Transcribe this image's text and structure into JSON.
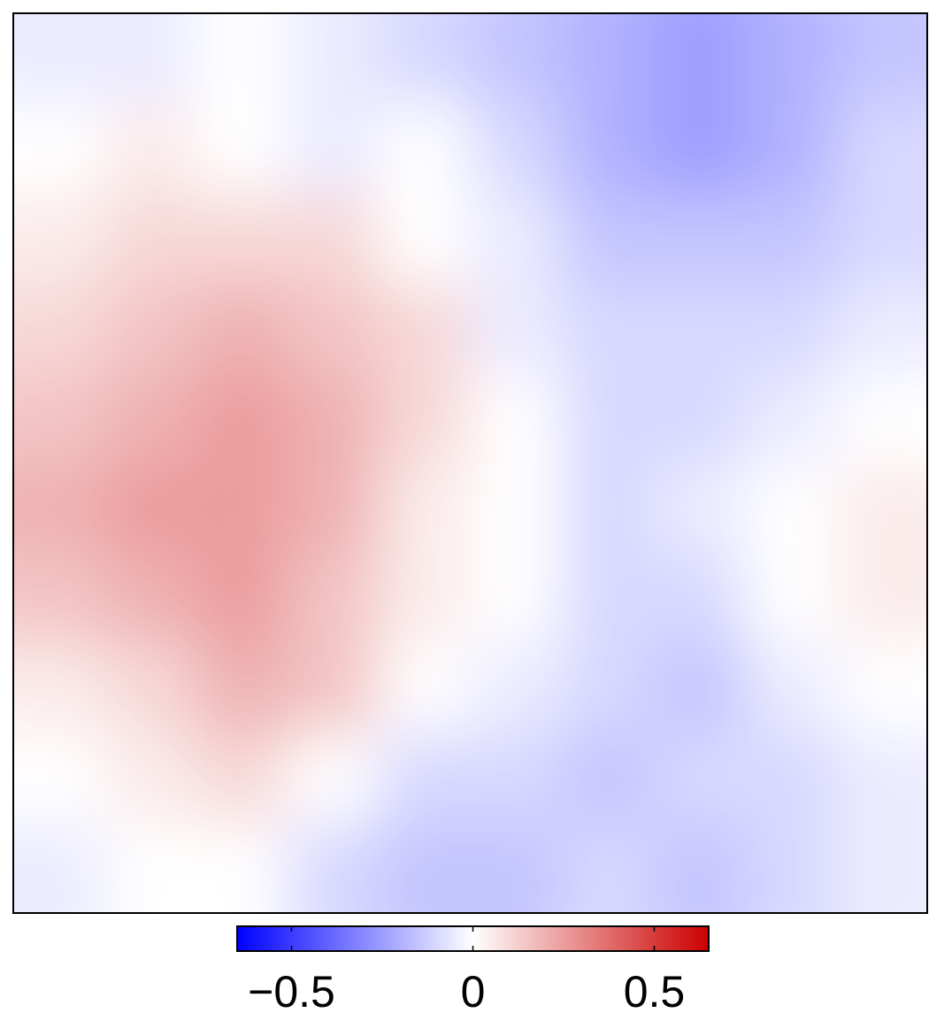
{
  "chart_data": {
    "type": "heatmap",
    "z": [
      [
        -0.05,
        -0.05,
        0,
        -0.05,
        -0.1,
        -0.15,
        -0.2,
        -0.25,
        -0.2,
        -0.15
      ],
      [
        0,
        0.05,
        0,
        -0.05,
        0,
        -0.1,
        -0.2,
        -0.25,
        -0.2,
        -0.1
      ],
      [
        0.05,
        0.1,
        0.1,
        0.1,
        0,
        -0.05,
        -0.15,
        -0.15,
        -0.15,
        -0.1
      ],
      [
        0.1,
        0.15,
        0.2,
        0.15,
        0.1,
        -0.05,
        -0.1,
        -0.1,
        -0.1,
        -0.05
      ],
      [
        0.15,
        0.2,
        0.25,
        0.2,
        0.1,
        0,
        -0.1,
        -0.1,
        -0.05,
        0
      ],
      [
        0.2,
        0.25,
        0.25,
        0.2,
        0.05,
        0,
        -0.1,
        -0.05,
        0,
        0.05
      ],
      [
        0.15,
        0.2,
        0.25,
        0.15,
        0.05,
        0,
        -0.1,
        -0.1,
        0,
        0.05
      ],
      [
        0.05,
        0.1,
        0.2,
        0.15,
        0,
        -0.05,
        -0.1,
        -0.15,
        -0.05,
        0
      ],
      [
        0,
        0.05,
        0.1,
        0,
        -0.1,
        -0.1,
        -0.15,
        -0.1,
        -0.1,
        -0.05
      ],
      [
        -0.05,
        0,
        0,
        -0.1,
        -0.15,
        -0.15,
        -0.1,
        -0.15,
        -0.1,
        -0.05
      ]
    ],
    "colormap": [
      "#0000ff",
      "#ffffff",
      "#cc0000"
    ],
    "clim": [
      -0.65,
      0.65
    ],
    "cticks": [
      {
        "value": -0.5,
        "label": "−0.5"
      },
      0,
      0.5
    ]
  }
}
